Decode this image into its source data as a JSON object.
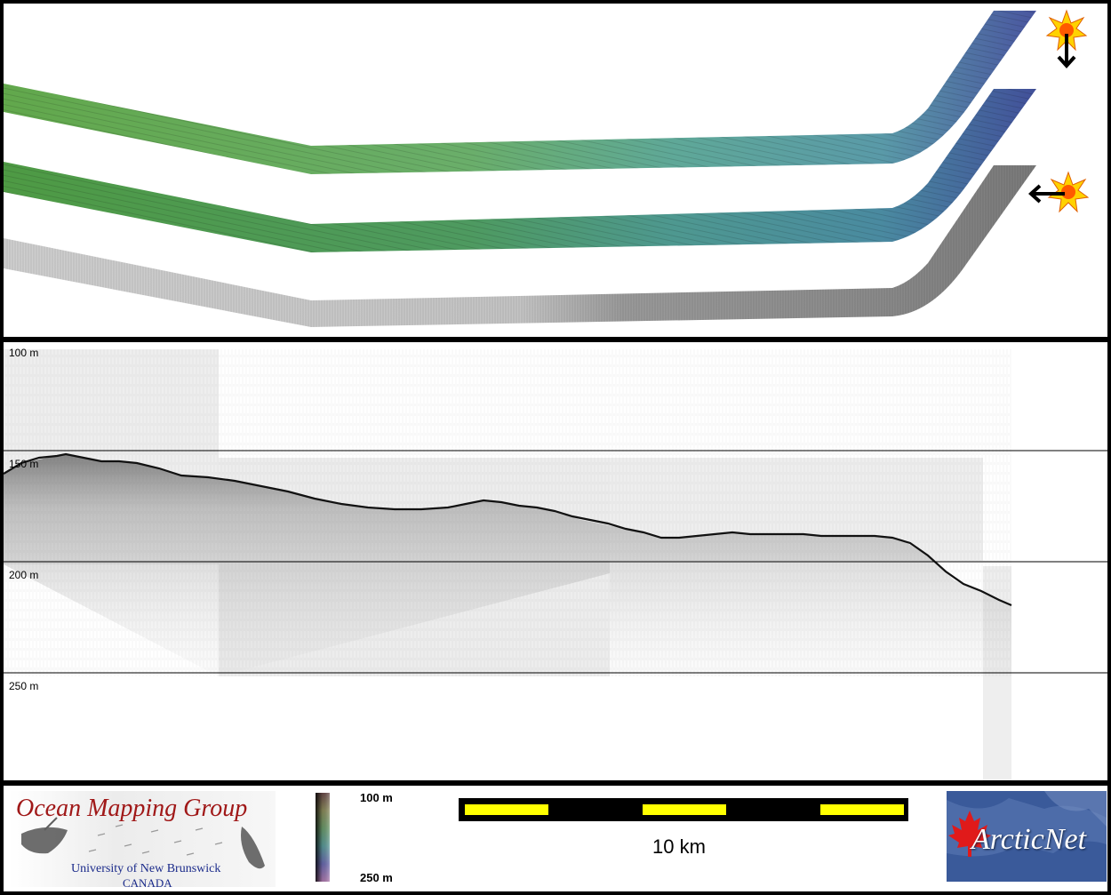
{
  "depth_labels": {
    "d100": "100 m",
    "d150": "150 m",
    "d200": "200 m",
    "d250": "250 m"
  },
  "colorbar": {
    "top_label": "100 m",
    "bottom_label": "250 m"
  },
  "scale_bar": {
    "label": "10 km"
  },
  "logos": {
    "omg_title": "Ocean Mapping Group",
    "omg_university": "University of New Brunswick",
    "omg_country": "CANADA",
    "arcticnet": "ArcticNet"
  },
  "icons": {
    "sun_illumination_north": "sun-arrow-down-icon",
    "sun_illumination_east": "sun-arrow-left-icon"
  },
  "colors": {
    "bathy_green": "#5fa04a",
    "bathy_teal": "#5aa6a0",
    "bathy_blue": "#4a5aa0",
    "scale_yellow": "#ffff00",
    "omg_red": "#a01818",
    "arcticnet_blue": "#3a5a9a"
  }
}
